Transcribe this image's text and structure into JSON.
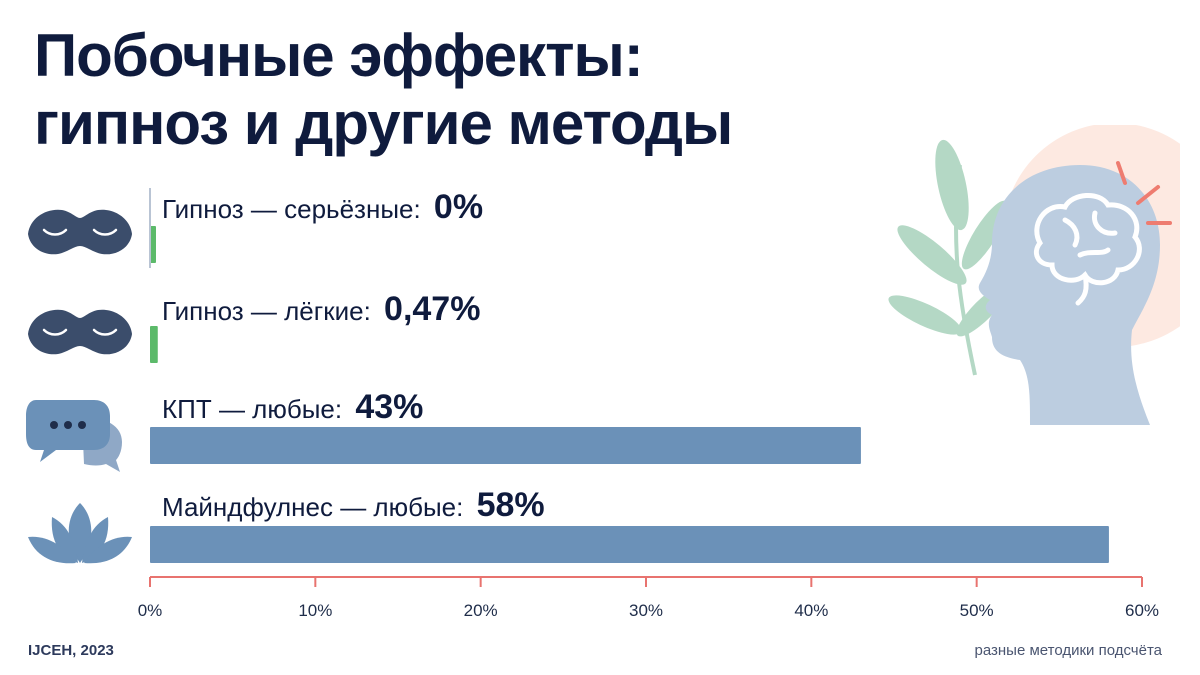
{
  "title_line1": "Побочные эффекты:",
  "title_line2": "гипноз и другие методы",
  "source": "IJCEH, 2023",
  "note": "разные методики подсчёта",
  "colors": {
    "hypnosis": "#5cba6a",
    "other": "#6b91b8",
    "axis": "#e8736f",
    "text": "#0f1b3d"
  },
  "rows": [
    {
      "label": "Гипноз — серьёзные:",
      "value_text": "0%",
      "icon": "sleep-mask-icon"
    },
    {
      "label": "Гипноз — лёгкие:",
      "value_text": "0,47%",
      "icon": "sleep-mask-icon"
    },
    {
      "label": "КПТ — любые:",
      "value_text": "43%",
      "icon": "speech-bubbles-icon"
    },
    {
      "label": "Майндфулнес — любые:",
      "value_text": "58%",
      "icon": "lotus-icon"
    }
  ],
  "chart_data": {
    "type": "bar",
    "orientation": "horizontal",
    "categories": [
      "Гипноз — серьёзные",
      "Гипноз — лёгкие",
      "КПТ — любые",
      "Майндфулнес — любые"
    ],
    "values": [
      0,
      0.47,
      43,
      58
    ],
    "bar_colors": [
      "#5cba6a",
      "#5cba6a",
      "#6b91b8",
      "#6b91b8"
    ],
    "xlim": [
      0,
      60
    ],
    "xticks": [
      "0%",
      "10%",
      "20%",
      "30%",
      "40%",
      "50%",
      "60%"
    ],
    "grid": false
  }
}
